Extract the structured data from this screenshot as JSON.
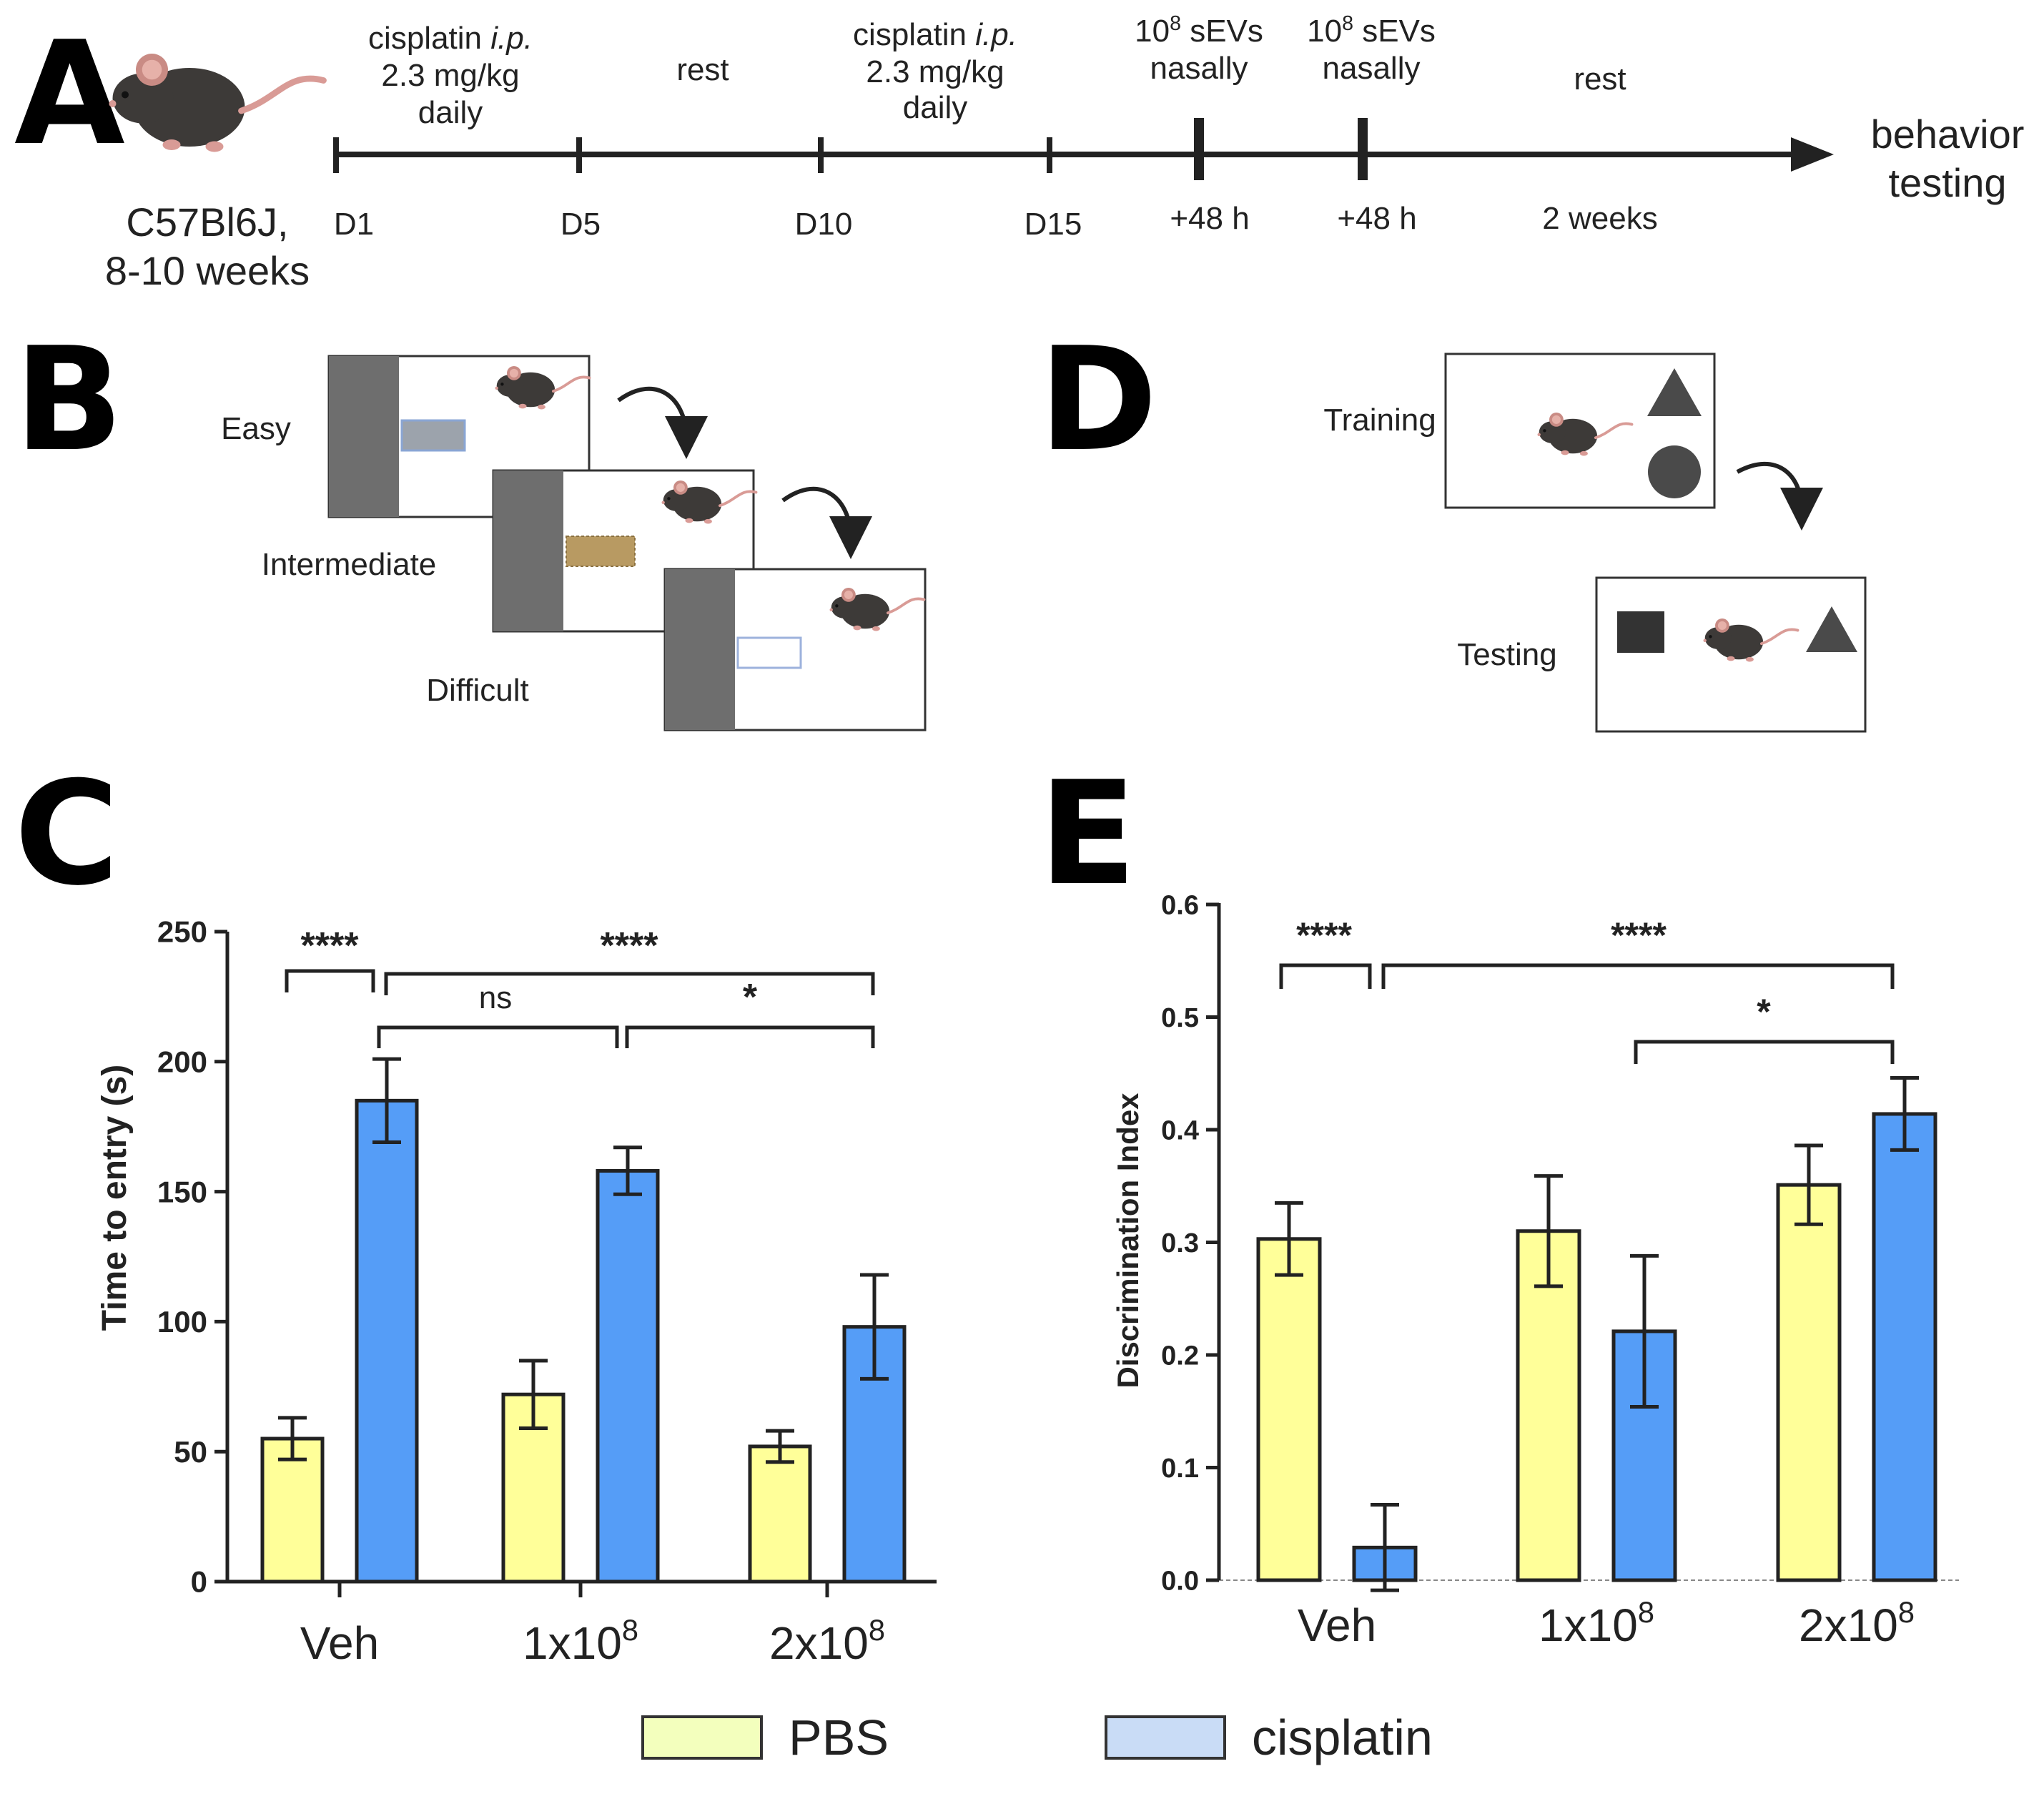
{
  "panel_labels": {
    "a": "A",
    "b": "B",
    "c": "C",
    "d": "D",
    "e": "E"
  },
  "timeline": {
    "strain": "C57Bl6J,",
    "age": "8-10 weeks",
    "phases": [
      {
        "lines": [
          "cisplatin i.p.",
          "2.3 mg/kg",
          "daily"
        ]
      },
      {
        "lines": [
          "rest"
        ]
      },
      {
        "lines": [
          "cisplatin i.p.",
          "2.3 mg/kg",
          "daily"
        ]
      },
      {
        "lines": [
          "10^8 sEVs",
          "nasally"
        ]
      },
      {
        "lines": [
          "10^8 sEVs",
          "nasally"
        ]
      },
      {
        "lines": [
          "rest"
        ]
      }
    ],
    "ticks": [
      "D1",
      "D5",
      "D10",
      "D15",
      "+48 h",
      "+48 h",
      "2 weeks"
    ],
    "end_label": [
      "behavior",
      "testing"
    ]
  },
  "panel_b": {
    "levels": [
      "Easy",
      "Intermediate",
      "Difficult"
    ]
  },
  "panel_d": {
    "phases": [
      "Training",
      "Testing"
    ]
  },
  "colors": {
    "pbs": "#ffff99",
    "cisplatin": "#559df7",
    "legend_pbs": "#f3ffbd",
    "legend_cisplatin": "#c9dcf6"
  },
  "legend": {
    "pbs": "PBS",
    "cisplatin": "cisplatin"
  },
  "chart_data": [
    {
      "id": "C",
      "type": "bar",
      "ylabel": "Time to entry (s)",
      "ylim": [
        0,
        250
      ],
      "yticks": [
        "0",
        "50",
        "100",
        "150",
        "200",
        "250"
      ],
      "categories": [
        "Veh",
        "1x10^8",
        "2x10^8"
      ],
      "series": [
        {
          "name": "PBS",
          "values": [
            55,
            72,
            52
          ],
          "errors": [
            8,
            13,
            6
          ]
        },
        {
          "name": "cisplatin",
          "values": [
            185,
            158,
            98
          ],
          "errors": [
            16,
            9,
            20
          ]
        }
      ],
      "significance": [
        {
          "from": "Veh.PBS",
          "to": "Veh.cisplatin",
          "label": "****"
        },
        {
          "from": "Veh.cisplatin",
          "to": "2x10^8.cisplatin",
          "label": "****"
        },
        {
          "from": "Veh.cisplatin",
          "to": "1x10^8.cisplatin",
          "label": "ns"
        },
        {
          "from": "1x10^8.cisplatin",
          "to": "2x10^8.cisplatin",
          "label": "*"
        }
      ]
    },
    {
      "id": "E",
      "type": "bar",
      "ylabel": "Discrimination Index",
      "ylim": [
        0,
        0.6
      ],
      "yticks": [
        "0.0",
        "0.1",
        "0.2",
        "0.3",
        "0.4",
        "0.5",
        "0.6"
      ],
      "categories": [
        "Veh",
        "1x10^8",
        "2x10^8"
      ],
      "series": [
        {
          "name": "PBS",
          "values": [
            0.303,
            0.31,
            0.351
          ],
          "errors": [
            0.032,
            0.049,
            0.035
          ]
        },
        {
          "name": "cisplatin",
          "values": [
            0.029,
            0.221,
            0.414
          ],
          "errors": [
            0.038,
            0.067,
            0.032
          ]
        }
      ],
      "significance": [
        {
          "from": "Veh.PBS",
          "to": "Veh.cisplatin",
          "label": "****"
        },
        {
          "from": "Veh.cisplatin",
          "to": "2x10^8.cisplatin",
          "label": "****"
        },
        {
          "from": "1x10^8.cisplatin",
          "to": "2x10^8.cisplatin",
          "label": "*"
        }
      ]
    }
  ]
}
